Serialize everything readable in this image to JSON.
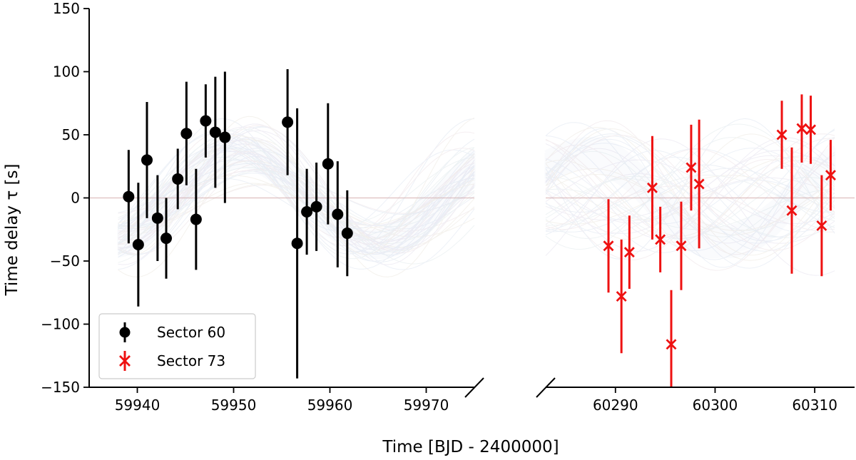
{
  "chart_data": {
    "type": "scatter",
    "xlabel": "Time [BJD - 2400000]",
    "ylabel": "Time delay τ [s]",
    "ylim": [
      -150,
      150
    ],
    "yticks": [
      "−150",
      "−100",
      "−50",
      "0",
      "50",
      "100",
      "150"
    ],
    "grid": false,
    "legend_position": "lower-left",
    "broken_x_axis": true,
    "panels": [
      {
        "xlim": [
          59935,
          59975
        ],
        "xticks": [
          "59940",
          "59950",
          "59960",
          "59970"
        ]
      },
      {
        "xlim": [
          60283,
          60314
        ],
        "xticks": [
          "60290",
          "60300",
          "60310"
        ]
      }
    ],
    "model_band": {
      "description": "many faint posterior model curves around a sinusoid",
      "period": 28,
      "amplitude": 36,
      "phase_peak_x": 59950.7,
      "band_color": "#b4c6e0",
      "zero_line_color": "#e3c8c8"
    },
    "series": [
      {
        "name": "Sector 60",
        "color": "#000000",
        "marker": "circle",
        "points": [
          {
            "x": 59939.1,
            "y": 1,
            "err": 37
          },
          {
            "x": 59940.1,
            "y": -37,
            "err": 49
          },
          {
            "x": 59941.0,
            "y": 30,
            "err": 46
          },
          {
            "x": 59942.1,
            "y": -16,
            "err": 34
          },
          {
            "x": 59943.0,
            "y": -32,
            "err": 32
          },
          {
            "x": 59944.2,
            "y": 15,
            "err": 24
          },
          {
            "x": 59945.1,
            "y": 51,
            "err": 41
          },
          {
            "x": 59946.1,
            "y": -17,
            "err": 40
          },
          {
            "x": 59947.1,
            "y": 61,
            "err": 29
          },
          {
            "x": 59948.1,
            "y": 52,
            "err": 44
          },
          {
            "x": 59949.1,
            "y": 48,
            "err": 52
          },
          {
            "x": 59955.6,
            "y": 60,
            "err": 42
          },
          {
            "x": 59956.6,
            "y": -36,
            "err": 107
          },
          {
            "x": 59957.6,
            "y": -11,
            "err": 34
          },
          {
            "x": 59958.6,
            "y": -7,
            "err": 35
          },
          {
            "x": 59959.8,
            "y": 27,
            "err": 48
          },
          {
            "x": 59960.8,
            "y": -13,
            "err": 42
          },
          {
            "x": 59961.8,
            "y": -28,
            "err": 34
          }
        ]
      },
      {
        "name": "Sector 73",
        "color": "#ee1111",
        "marker": "x",
        "points": [
          {
            "x": 60289.3,
            "y": -38,
            "err": 37
          },
          {
            "x": 60290.6,
            "y": -78,
            "err": 45
          },
          {
            "x": 60291.4,
            "y": -43,
            "err": 29
          },
          {
            "x": 60293.7,
            "y": 8,
            "err": 41
          },
          {
            "x": 60294.5,
            "y": -33,
            "err": 26
          },
          {
            "x": 60295.6,
            "y": -116,
            "err": 43
          },
          {
            "x": 60296.6,
            "y": -38,
            "err": 35
          },
          {
            "x": 60297.6,
            "y": 24,
            "err": 34
          },
          {
            "x": 60298.4,
            "y": 11,
            "err": 51
          },
          {
            "x": 60306.7,
            "y": 50,
            "err": 27
          },
          {
            "x": 60307.7,
            "y": -10,
            "err": 50
          },
          {
            "x": 60308.7,
            "y": 55,
            "err": 27
          },
          {
            "x": 60309.6,
            "y": 54,
            "err": 27
          },
          {
            "x": 60310.7,
            "y": -22,
            "err": 40
          },
          {
            "x": 60311.6,
            "y": 18,
            "err": 28
          }
        ]
      }
    ]
  }
}
